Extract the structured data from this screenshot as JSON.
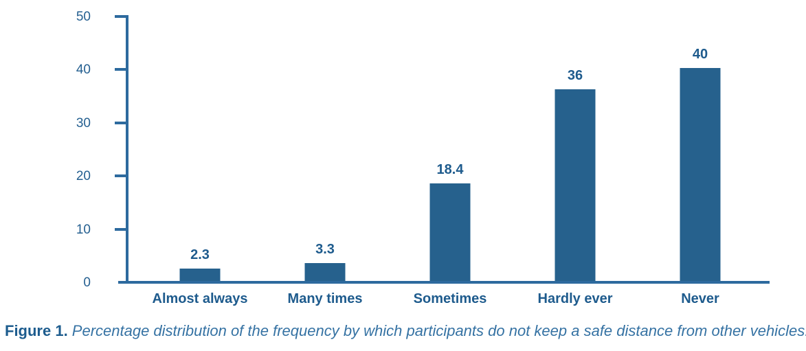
{
  "chart_data": {
    "type": "bar",
    "categories": [
      "Almost always",
      "Many times",
      "Sometimes",
      "Hardly ever",
      "Never"
    ],
    "values": [
      2.3,
      3.3,
      18.4,
      36,
      40
    ],
    "value_labels": [
      "2.3",
      "3.3",
      "18.4",
      "36",
      "40"
    ],
    "title": "",
    "xlabel": "",
    "ylabel": "",
    "ylim": [
      0,
      50
    ],
    "yticks": [
      0,
      10,
      20,
      30,
      40,
      50
    ],
    "grid": false,
    "legend_position": "none",
    "bar_color": "#26618D",
    "axis_color": "#2D6A9E",
    "tick_label_color": "#245F90",
    "label_color": "#1E5B8D",
    "background_color": "#FFFFFF"
  },
  "caption": {
    "prefix": "Figure 1.",
    "text": " Percentage distribution of the frequency by which participants do not keep a safe distance from other vehicles."
  }
}
